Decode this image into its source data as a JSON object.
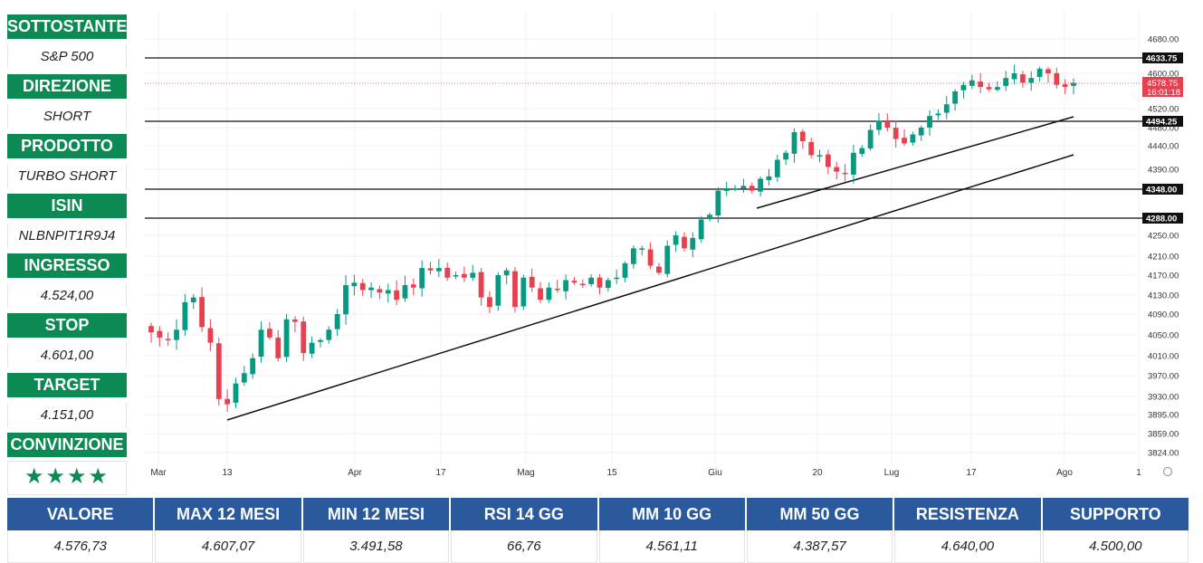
{
  "sidebar": [
    {
      "label": "SOTTOSTANTE",
      "value": "S&P 500"
    },
    {
      "label": "DIREZIONE",
      "value": "SHORT"
    },
    {
      "label": "PRODOTTO",
      "value": "TURBO SHORT"
    },
    {
      "label": "ISIN",
      "value": "NLBNPIT1R9J4"
    },
    {
      "label": "INGRESSO",
      "value": "4.524,00"
    },
    {
      "label": "STOP",
      "value": "4.601,00"
    },
    {
      "label": "TARGET",
      "value": "4.151,00"
    },
    {
      "label": "CONVINZIONE",
      "value": "★★★★"
    }
  ],
  "stats": {
    "headers": [
      "VALORE",
      "MAX 12 MESI",
      "MIN 12 MESI",
      "RSI 14 GG",
      "MM 10 GG",
      "MM 50 GG",
      "RESISTENZA",
      "SUPPORTO"
    ],
    "values": [
      "4.576,73",
      "4.607,07",
      "3.491,58",
      "66,76",
      "4.561,11",
      "4.387,57",
      "4.640,00",
      "4.500,00"
    ]
  },
  "colors": {
    "up": "#089981",
    "down": "#e8404f",
    "header_green": "#0b8a53",
    "header_blue": "#2a5a9c"
  },
  "chart_data": {
    "type": "candlestick",
    "y_ticks": [
      "4680.00",
      "4600.00",
      "4520.00",
      "4480.00",
      "4440.00",
      "4390.00",
      "4250.00",
      "4210.00",
      "4170.00",
      "4130.00",
      "4090.00",
      "4050.00",
      "4010.00",
      "3970.00",
      "3930.00",
      "3895.00",
      "3859.00",
      "3824.00"
    ],
    "x_labels": [
      "Mar",
      "13",
      "Apr",
      "17",
      "Mag",
      "15",
      "Giu",
      "20",
      "Lug",
      "17",
      "Ago",
      "1"
    ],
    "horizontal_levels": [
      {
        "value": 4633.75,
        "label": "4633.75"
      },
      {
        "value": 4494.25,
        "label": "4494.25"
      },
      {
        "value": 4348.0,
        "label": "4348.00"
      },
      {
        "value": 4288.0,
        "label": "4288.00"
      }
    ],
    "current_price": {
      "value": 4578.75,
      "label": "4578.75",
      "countdown": "16:01:18"
    },
    "close_series": [
      4055,
      4045,
      4040,
      4060,
      4115,
      4125,
      4065,
      4035,
      3925,
      3915,
      3955,
      3975,
      4005,
      4060,
      4045,
      4005,
      4080,
      4075,
      4015,
      4035,
      4040,
      4060,
      4090,
      4150,
      4155,
      4140,
      4145,
      4135,
      4140,
      4120,
      4150,
      4145,
      4185,
      4180,
      4185,
      4165,
      4170,
      4165,
      4175,
      4125,
      4105,
      4170,
      4180,
      4105,
      4165,
      4145,
      4120,
      4145,
      4140,
      4160,
      4155,
      4150,
      4165,
      4145,
      4160,
      4165,
      4195,
      4225,
      4225,
      4190,
      4175,
      4230,
      4250,
      4225,
      4245,
      4285,
      4295,
      4345,
      4350,
      4350,
      4355,
      4345,
      4370,
      4375,
      4410,
      4425,
      4470,
      4450,
      4420,
      4420,
      4395,
      4385,
      4380,
      4425,
      4435,
      4475,
      4495,
      4480,
      4455,
      4445,
      4465,
      4480,
      4505,
      4510,
      4530,
      4560,
      4575,
      4585,
      4570,
      4565,
      4570,
      4590,
      4600,
      4580,
      4590,
      4610,
      4600,
      4575,
      4570,
      4578
    ]
  }
}
